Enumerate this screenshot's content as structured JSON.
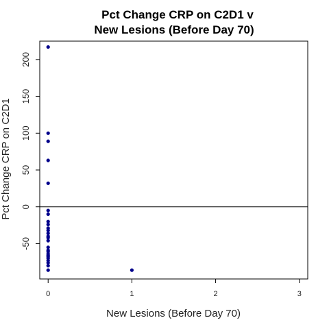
{
  "chart_data": {
    "type": "scatter",
    "title": [
      "Pct Change CRP on C2D1 v",
      "New Lesions (Before Day 70)"
    ],
    "xlabel": "New Lesions (Before Day 70)",
    "ylabel": "Pct Change CRP on C2D1",
    "xlim": [
      -0.1,
      3.1
    ],
    "ylim": [
      -98,
      225
    ],
    "xticks": [
      0,
      1,
      2,
      3
    ],
    "yticks": [
      -50,
      0,
      50,
      100,
      150,
      200
    ],
    "reference_line_y": 0,
    "point_color": "#00008B",
    "series": [
      {
        "x": [
          0,
          0,
          0,
          0,
          0,
          0,
          0,
          0,
          0,
          0,
          0,
          0,
          0,
          0,
          0,
          0,
          0,
          0,
          0,
          0,
          0,
          0,
          0,
          0,
          0,
          0,
          1
        ],
        "y": [
          217,
          100,
          89,
          63,
          32,
          -5,
          -10,
          -20,
          -24,
          -29,
          -32,
          -36,
          -40,
          -42,
          -46,
          -55,
          -59,
          -61,
          -64,
          -66,
          -68,
          -70,
          -73,
          -76,
          -80,
          -86,
          -86
        ]
      }
    ]
  }
}
